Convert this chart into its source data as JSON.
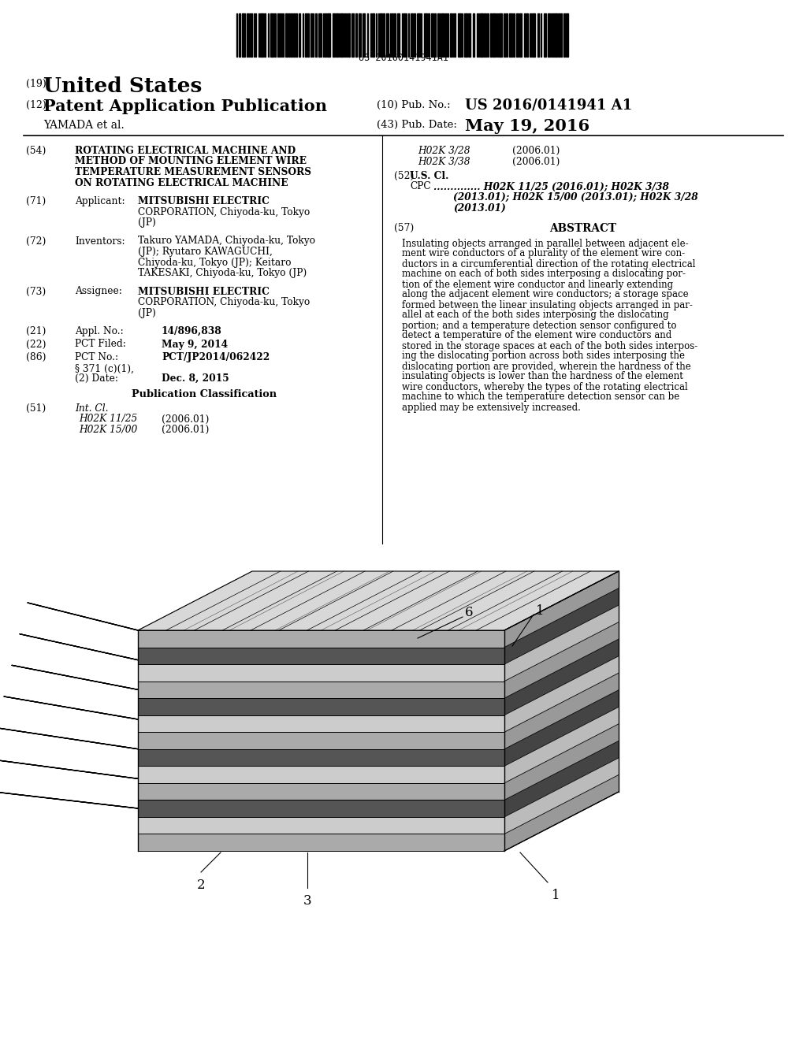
{
  "background_color": "#ffffff",
  "barcode_text": "US 20160141941A1",
  "header": {
    "country_number": "(19)",
    "country": "United States",
    "type_number": "(12)",
    "type": "Patent Application Publication",
    "pub_no_label": "(10) Pub. No.:",
    "pub_no": "US 2016/0141941 A1",
    "inventor": "YAMADA et al.",
    "pub_date_label": "(43) Pub. Date:",
    "pub_date": "May 19, 2016"
  },
  "left_col": {
    "title_num": "(54)",
    "title_lines": [
      "ROTATING ELECTRICAL MACHINE AND",
      "METHOD OF MOUNTING ELEMENT WIRE",
      "TEMPERATURE MEASUREMENT SENSORS",
      "ON ROTATING ELECTRICAL MACHINE"
    ],
    "applicant_num": "(71)",
    "applicant_label": "Applicant:",
    "applicant_bold": "MITSUBISHI ELECTRIC",
    "applicant_rest": "CORPORATION, Chiyoda-ku, Tokyo\n(JP)",
    "inventors_num": "(72)",
    "inventors_label": "Inventors:",
    "inventors_lines": [
      {
        "bold": "Takuro YAMADA",
        "rest": ", Chiyoda-ku, Tokyo"
      },
      {
        "bold": "",
        "rest": "(JP); "
      },
      {
        "bold": "Ryutaro KAWAGUCHI",
        "rest": ","
      },
      {
        "bold": "",
        "rest": "Chiyoda-ku, Tokyo (JP); "
      },
      {
        "bold": "Keitaro",
        "rest": ""
      },
      {
        "bold": "TAKESAKI",
        "rest": ", Chiyoda-ku, Tokyo (JP)"
      }
    ],
    "inventors_text_lines": [
      "Takuro YAMADA, Chiyoda-ku, Tokyo",
      "(JP); Ryutaro KAWAGUCHI,",
      "Chiyoda-ku, Tokyo (JP); Keitaro",
      "TAKESAKI, Chiyoda-ku, Tokyo (JP)"
    ],
    "assignee_num": "(73)",
    "assignee_label": "Assignee:",
    "assignee_bold": "MITSUBISHI ELECTRIC",
    "assignee_rest_lines": [
      "CORPORATION, Chiyoda-ku, Tokyo",
      "(JP)"
    ],
    "appl_no_num": "(21)",
    "appl_no_label": "Appl. No.:",
    "appl_no": "14/896,838",
    "pct_filed_num": "(22)",
    "pct_filed_label": "PCT Filed:",
    "pct_filed": "May 9, 2014",
    "pct_no_num": "(86)",
    "pct_no_label": "PCT No.:",
    "pct_no": "PCT/JP2014/062422",
    "section_371_line1": "§ 371 (c)(1),",
    "section_371_line2": "(2) Date:",
    "section_371_date": "Dec. 8, 2015",
    "pub_class_title": "Publication Classification",
    "int_cl_num": "(51)",
    "int_cl_label": "Int. Cl.",
    "int_cl_left": [
      {
        "code": "H02K 11/25",
        "date": "(2006.01)"
      },
      {
        "code": "H02K 15/00",
        "date": "(2006.01)"
      }
    ],
    "int_cl_right": [
      {
        "code": "H02K 3/28",
        "date": "(2006.01)"
      },
      {
        "code": "H02K 3/38",
        "date": "(2006.01)"
      }
    ]
  },
  "right_col": {
    "us_cl_num": "(52)",
    "us_cl_label": "U.S. Cl.",
    "cpc_label": "CPC",
    "cpc_dots": "................",
    "cpc_lines": [
      "H02K 11/25 (2016.01); H02K 3/38",
      "(2013.01); H02K 15/00 (2013.01); H02K 3/28",
      "(2013.01)"
    ],
    "abstract_num": "(57)",
    "abstract_title": "ABSTRACT",
    "abstract_lines": [
      "Insulating objects arranged in parallel between adjacent ele-",
      "ment wire conductors of a plurality of the element wire con-",
      "ductors in a circumferential direction of the rotating electrical",
      "machine on each of both sides interposing a dislocating por-",
      "tion of the element wire conductor and linearly extending",
      "along the adjacent element wire conductors; a storage space",
      "formed between the linear insulating objects arranged in par-",
      "allel at each of the both sides interposing the dislocating",
      "portion; and a temperature detection sensor configured to",
      "detect a temperature of the element wire conductors and",
      "stored in the storage spaces at each of the both sides interpos-",
      "ing the dislocating portion across both sides interposing the",
      "dislocating portion are provided, wherein the hardness of the",
      "insulating objects is lower than the hardness of the element",
      "wire conductors, whereby the types of the rotating electrical",
      "machine to which the temperature detection sensor can be",
      "applied may be extensively increased."
    ]
  }
}
